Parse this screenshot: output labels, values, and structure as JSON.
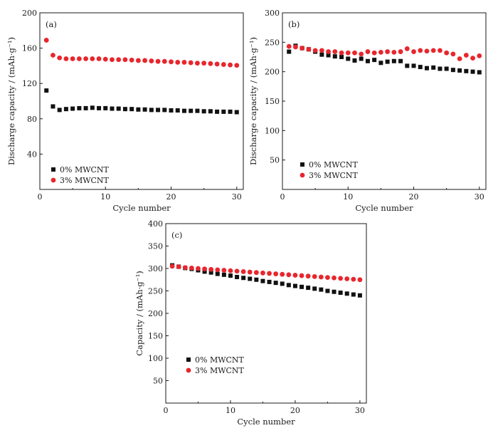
{
  "chart_data": [
    {
      "type": "scatter",
      "panel_label": "(a)",
      "xlabel": "Cycle number",
      "ylabel": "Discharge capacity / (mAh·g⁻¹)",
      "xlim": [
        0,
        31
      ],
      "ylim": [
        0,
        200
      ],
      "xticks": [
        0,
        10,
        20,
        30
      ],
      "yticks": [
        40,
        80,
        120,
        160,
        200
      ],
      "legend_position": "bottom-left",
      "series": [
        {
          "name": "0% MWCNT",
          "marker": "square",
          "color": "#111111",
          "x": [
            1,
            2,
            3,
            4,
            5,
            6,
            7,
            8,
            9,
            10,
            11,
            12,
            13,
            14,
            15,
            16,
            17,
            18,
            19,
            20,
            21,
            22,
            23,
            24,
            25,
            26,
            27,
            28,
            29,
            30
          ],
          "y": [
            112,
            94,
            90,
            91,
            91.5,
            92,
            92,
            92.5,
            92,
            92,
            91.5,
            91.5,
            91,
            91,
            90.5,
            90.5,
            90,
            90,
            90,
            89.5,
            89.5,
            89,
            89,
            89,
            88.5,
            88.5,
            88,
            88,
            88,
            87.5
          ]
        },
        {
          "name": "3% MWCNT",
          "marker": "circle",
          "color": "#e8262d",
          "x": [
            1,
            2,
            3,
            4,
            5,
            6,
            7,
            8,
            9,
            10,
            11,
            12,
            13,
            14,
            15,
            16,
            17,
            18,
            19,
            20,
            21,
            22,
            23,
            24,
            25,
            26,
            27,
            28,
            29,
            30
          ],
          "y": [
            169,
            152,
            149,
            148,
            148,
            148,
            148,
            148,
            148,
            147.5,
            147,
            147,
            147,
            146.5,
            146,
            146,
            145.5,
            145,
            145,
            144.5,
            144,
            144,
            143.5,
            143,
            143,
            142.5,
            142,
            141.5,
            141,
            140.5
          ]
        }
      ]
    },
    {
      "type": "scatter",
      "panel_label": "(b)",
      "xlabel": "Cycle number",
      "ylabel": "Discharge capacity / (mAh·g⁻¹)",
      "xlim": [
        0,
        31
      ],
      "ylim": [
        0,
        300
      ],
      "xticks": [
        0,
        10,
        20,
        30
      ],
      "yticks": [
        50,
        100,
        150,
        200,
        250,
        300
      ],
      "legend_position": "bottom-left",
      "series": [
        {
          "name": "0% MWCNT",
          "marker": "square",
          "color": "#111111",
          "x": [
            1,
            2,
            3,
            4,
            5,
            6,
            7,
            8,
            9,
            10,
            11,
            12,
            13,
            14,
            15,
            16,
            17,
            18,
            19,
            20,
            21,
            22,
            23,
            24,
            25,
            26,
            27,
            28,
            29,
            30
          ],
          "y": [
            234,
            244,
            240,
            238,
            234,
            229,
            228,
            226,
            225,
            222,
            219,
            222,
            218,
            220,
            215,
            217,
            218,
            218,
            210,
            210,
            208,
            206,
            207,
            205,
            205,
            203,
            202,
            201,
            200,
            199
          ]
        },
        {
          "name": "3% MWCNT",
          "marker": "circle",
          "color": "#e8262d",
          "x": [
            1,
            2,
            3,
            4,
            5,
            6,
            7,
            8,
            9,
            10,
            11,
            12,
            13,
            14,
            15,
            16,
            17,
            18,
            19,
            20,
            21,
            22,
            23,
            24,
            25,
            26,
            27,
            28,
            29,
            30
          ],
          "y": [
            243,
            242,
            240,
            238,
            236,
            236,
            234,
            234,
            232,
            232,
            232,
            230,
            234,
            232,
            233,
            234,
            233,
            234,
            239,
            234,
            236,
            235,
            236,
            236,
            232,
            230,
            222,
            228,
            223,
            227
          ]
        }
      ]
    },
    {
      "type": "scatter",
      "panel_label": "(c)",
      "xlabel": "Cycle number",
      "ylabel": "Capacity / (mAh·g⁻¹)",
      "xlim": [
        0,
        31
      ],
      "ylim": [
        0,
        400
      ],
      "xticks": [
        0,
        10,
        20,
        30
      ],
      "yticks": [
        50,
        100,
        150,
        200,
        250,
        300,
        350,
        400
      ],
      "legend_position": "bottom-left",
      "series": [
        {
          "name": "0% MWCNT",
          "marker": "square",
          "color": "#111111",
          "x": [
            1,
            2,
            3,
            4,
            5,
            6,
            7,
            8,
            9,
            10,
            11,
            12,
            13,
            14,
            15,
            16,
            17,
            18,
            19,
            20,
            21,
            22,
            23,
            24,
            25,
            26,
            27,
            28,
            29,
            30
          ],
          "y": [
            307,
            304,
            301,
            299,
            296,
            293,
            291,
            288,
            286,
            284,
            281,
            279,
            277,
            275,
            272,
            270,
            268,
            266,
            263,
            261,
            259,
            257,
            255,
            253,
            250,
            248,
            246,
            244,
            242,
            240
          ]
        },
        {
          "name": "3% MWCNT",
          "marker": "circle",
          "color": "#e8262d",
          "x": [
            1,
            2,
            3,
            4,
            5,
            6,
            7,
            8,
            9,
            10,
            11,
            12,
            13,
            14,
            15,
            16,
            17,
            18,
            19,
            20,
            21,
            22,
            23,
            24,
            25,
            26,
            27,
            28,
            29,
            30
          ],
          "y": [
            305,
            304,
            302,
            301,
            300,
            299,
            298,
            297,
            296,
            295,
            294,
            293,
            292,
            291,
            290,
            289,
            288,
            287,
            286,
            285,
            284,
            283,
            282,
            281,
            280,
            279,
            278,
            277,
            276,
            275
          ]
        }
      ]
    }
  ]
}
